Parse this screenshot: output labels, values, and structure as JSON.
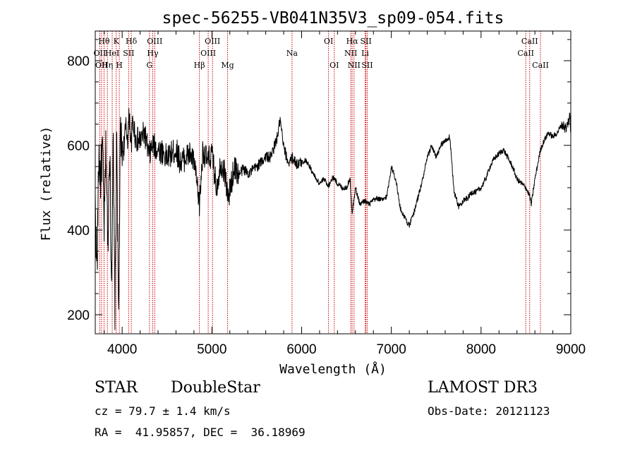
{
  "chart_data": {
    "type": "line",
    "title": "spec-56255-VB041N35V3_sp09-054.fits",
    "xlabel": "Wavelength (Å)",
    "ylabel": "Flux (relative)",
    "xlim": [
      3700,
      9000
    ],
    "ylim": [
      155,
      870
    ],
    "xticks": [
      4000,
      5000,
      6000,
      7000,
      8000,
      9000
    ],
    "yticks": [
      200,
      400,
      600,
      800
    ],
    "grid": false,
    "series": [
      {
        "name": "flux",
        "x": [
          3700,
          3720,
          3740,
          3760,
          3780,
          3800,
          3820,
          3840,
          3860,
          3880,
          3900,
          3920,
          3940,
          3960,
          3980,
          4000,
          4020,
          4040,
          4060,
          4080,
          4100,
          4120,
          4150,
          4200,
          4250,
          4300,
          4340,
          4400,
          4450,
          4500,
          4550,
          4600,
          4650,
          4700,
          4750,
          4800,
          4861,
          4900,
          4950,
          5000,
          5050,
          5100,
          5150,
          5180,
          5250,
          5300,
          5350,
          5400,
          5450,
          5500,
          5550,
          5600,
          5650,
          5700,
          5730,
          5760,
          5800,
          5850,
          5900,
          5950,
          6000,
          6050,
          6100,
          6150,
          6200,
          6250,
          6300,
          6350,
          6400,
          6450,
          6500,
          6540,
          6563,
          6600,
          6650,
          6700,
          6750,
          6800,
          6850,
          6900,
          6950,
          7000,
          7050,
          7100,
          7150,
          7200,
          7250,
          7300,
          7350,
          7400,
          7450,
          7500,
          7550,
          7600,
          7650,
          7700,
          7750,
          7800,
          7850,
          7900,
          7950,
          8000,
          8050,
          8100,
          8150,
          8200,
          8250,
          8300,
          8350,
          8400,
          8450,
          8500,
          8542,
          8560,
          8600,
          8662,
          8700,
          8750,
          8800,
          8850,
          8900,
          8950,
          8990,
          9000
        ],
        "values": [
          460,
          300,
          580,
          520,
          600,
          400,
          610,
          350,
          620,
          280,
          600,
          200,
          640,
          170,
          630,
          580,
          600,
          640,
          620,
          670,
          600,
          660,
          615,
          610,
          630,
          575,
          600,
          590,
          585,
          570,
          580,
          590,
          560,
          570,
          580,
          560,
          460,
          590,
          560,
          580,
          500,
          560,
          530,
          470,
          550,
          530,
          545,
          535,
          540,
          550,
          560,
          575,
          570,
          600,
          620,
          660,
          595,
          560,
          570,
          555,
          560,
          565,
          545,
          525,
          510,
          520,
          505,
          525,
          510,
          500,
          500,
          520,
          440,
          500,
          460,
          470,
          460,
          470,
          475,
          470,
          480,
          550,
          520,
          450,
          430,
          410,
          440,
          480,
          520,
          570,
          600,
          570,
          600,
          610,
          620,
          490,
          455,
          470,
          475,
          490,
          490,
          500,
          520,
          550,
          570,
          580,
          590,
          570,
          550,
          520,
          510,
          500,
          480,
          460,
          520,
          590,
          610,
          630,
          620,
          630,
          650,
          640,
          670,
          620
        ]
      }
    ],
    "line_markers": [
      {
        "name": "Hepsilon",
        "wavelength": 3750,
        "label": "OII",
        "row": 2
      },
      {
        "name": "Hzeta",
        "wavelength": 3770,
        "label": "OII",
        "row": 3
      },
      {
        "name": "Htheta",
        "wavelength": 3798,
        "label": "Hθ",
        "row": 1
      },
      {
        "name": "Heta",
        "wavelength": 3835,
        "label": "Hη",
        "row": 3
      },
      {
        "name": "He",
        "wavelength": 3889,
        "label": "HeI",
        "row": 2
      },
      {
        "name": "CaK",
        "wavelength": 3934,
        "label": "K",
        "row": 1
      },
      {
        "name": "CaH",
        "wavelength": 3968,
        "label": "H",
        "row": 3
      },
      {
        "name": "SII1",
        "wavelength": 4072,
        "label": "SII",
        "row": 2
      },
      {
        "name": "Hdelta",
        "wavelength": 4102,
        "label": "Hδ",
        "row": 1
      },
      {
        "name": "Gband",
        "wavelength": 4304,
        "label": "G",
        "row": 3
      },
      {
        "name": "Hgamma",
        "wavelength": 4341,
        "label": "Hγ",
        "row": 2
      },
      {
        "name": "OIII1",
        "wavelength": 4363,
        "label": "OIII",
        "row": 1
      },
      {
        "name": "Hbeta",
        "wavelength": 4861,
        "label": "Hβ",
        "row": 3
      },
      {
        "name": "OIII2",
        "wavelength": 4959,
        "label": "OIII",
        "row": 2
      },
      {
        "name": "OIII3",
        "wavelength": 5007,
        "label": "OIII",
        "row": 1
      },
      {
        "name": "Mg",
        "wavelength": 5175,
        "label": "Mg",
        "row": 3
      },
      {
        "name": "Na",
        "wavelength": 5893,
        "label": "Na",
        "row": 2
      },
      {
        "name": "OI1",
        "wavelength": 6300,
        "label": "OI",
        "row": 1
      },
      {
        "name": "OI2",
        "wavelength": 6364,
        "label": "OI",
        "row": 3
      },
      {
        "name": "NII1",
        "wavelength": 6548,
        "label": "NII",
        "row": 2
      },
      {
        "name": "Halpha",
        "wavelength": 6563,
        "label": "Hα",
        "row": 1
      },
      {
        "name": "NII2",
        "wavelength": 6584,
        "label": "NII",
        "row": 3
      },
      {
        "name": "Li",
        "wavelength": 6708,
        "label": "Li",
        "row": 2
      },
      {
        "name": "SII2",
        "wavelength": 6717,
        "label": "SII",
        "row": 1
      },
      {
        "name": "SII3",
        "wavelength": 6731,
        "label": "SII",
        "row": 3
      },
      {
        "name": "CaII1",
        "wavelength": 8498,
        "label": "CaII",
        "row": 2
      },
      {
        "name": "CaII2",
        "wavelength": 8542,
        "label": "CaII",
        "row": 1
      },
      {
        "name": "CaII3",
        "wavelength": 8662,
        "label": "CaII",
        "row": 3
      }
    ]
  },
  "info": {
    "class": "STAR",
    "subclass": "DoubleStar",
    "survey": "LAMOST DR3",
    "redshift": "cz = 79.7 ± 1.4 km/s",
    "obs_date": "Obs-Date: 20121123",
    "coords": "RA =  41.95857, DEC =  36.18969"
  },
  "colors": {
    "line_marker": "#cc0000",
    "spectrum": "#000000"
  }
}
